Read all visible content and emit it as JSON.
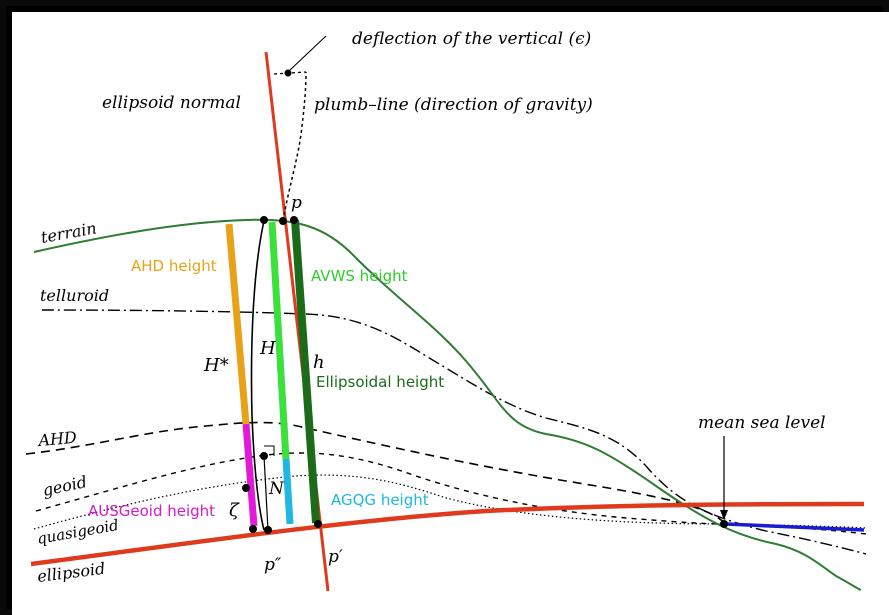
{
  "labels": {
    "deflection": "deflection of the vertical (ϵ)",
    "ellipsoid_normal": "ellipsoid normal",
    "plumb_line": "plumb–line (direction of gravity)",
    "terrain": "terrain",
    "telluroid": "telluroid",
    "ahd": "AHD",
    "geoid": "geoid",
    "quasigeoid": "quasigeoid",
    "ellipsoid": "ellipsoid",
    "mean_sea_level": "mean sea level",
    "point_p": "p",
    "point_p_double": "p″",
    "point_p_prime": "p′",
    "H_star": "H*",
    "H": "H",
    "h": "h",
    "N": "N",
    "zeta": "ζ",
    "ahd_height": "AHD height",
    "avws_height": "AVWS height",
    "ellipsoidal_height": "Ellipsoidal height",
    "ausgeoid_height": "AUSGeoid height",
    "agqg_height": "AGQG height"
  },
  "colors": {
    "ellipsoid_line": "#e03a1e",
    "terrain_line": "#2e7d32",
    "ahd_bar": "#e8a21a",
    "avws_bar": "#3be03b",
    "ellipsoidal_bar": "#1b6b1b",
    "ausgeoid_bar": "#e21ad8",
    "agqg_bar": "#1fb8e0",
    "msl_line": "#1b1bd1",
    "ahd_text": "#e8a21a",
    "avws_text": "#2ecc2e",
    "ellipsoidal_text": "#1b6b1b",
    "ausgeoid_text": "#d11ad1",
    "agqg_text": "#1fb8e0"
  }
}
